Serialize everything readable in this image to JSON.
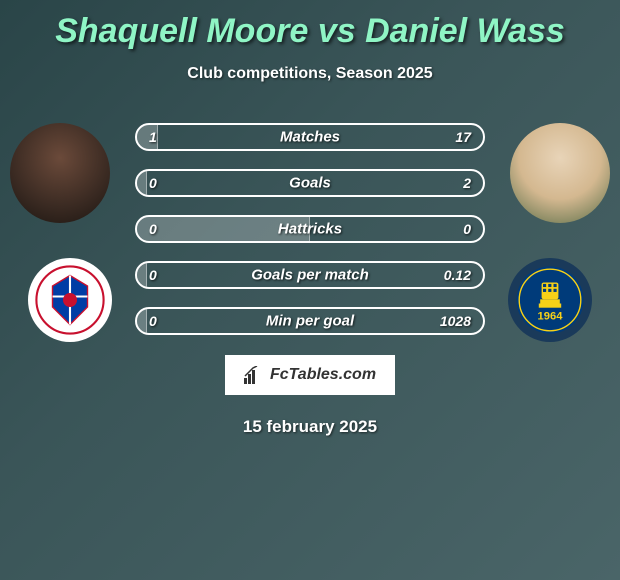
{
  "title_color": "#8ff5c5",
  "player1": {
    "name": "Shaquell Moore"
  },
  "vs_text": "vs",
  "player2": {
    "name": "Daniel Wass"
  },
  "subtitle": "Club competitions, Season 2025",
  "stats": [
    {
      "label": "Matches",
      "left_val": "1",
      "right_val": "17",
      "left_pct": 6
    },
    {
      "label": "Goals",
      "left_val": "0",
      "right_val": "2",
      "left_pct": 3
    },
    {
      "label": "Hattricks",
      "left_val": "0",
      "right_val": "0",
      "left_pct": 50
    },
    {
      "label": "Goals per match",
      "left_val": "0",
      "right_val": "0.12",
      "left_pct": 3
    },
    {
      "label": "Min per goal",
      "left_val": "0",
      "right_val": "1028",
      "left_pct": 3
    }
  ],
  "logo_text": "FcTables.com",
  "date": "15 february 2025",
  "club_right_year": "1964",
  "bar_border_color": "#ffffff",
  "bar_fill_color": "rgba(255,255,255,0.25)"
}
